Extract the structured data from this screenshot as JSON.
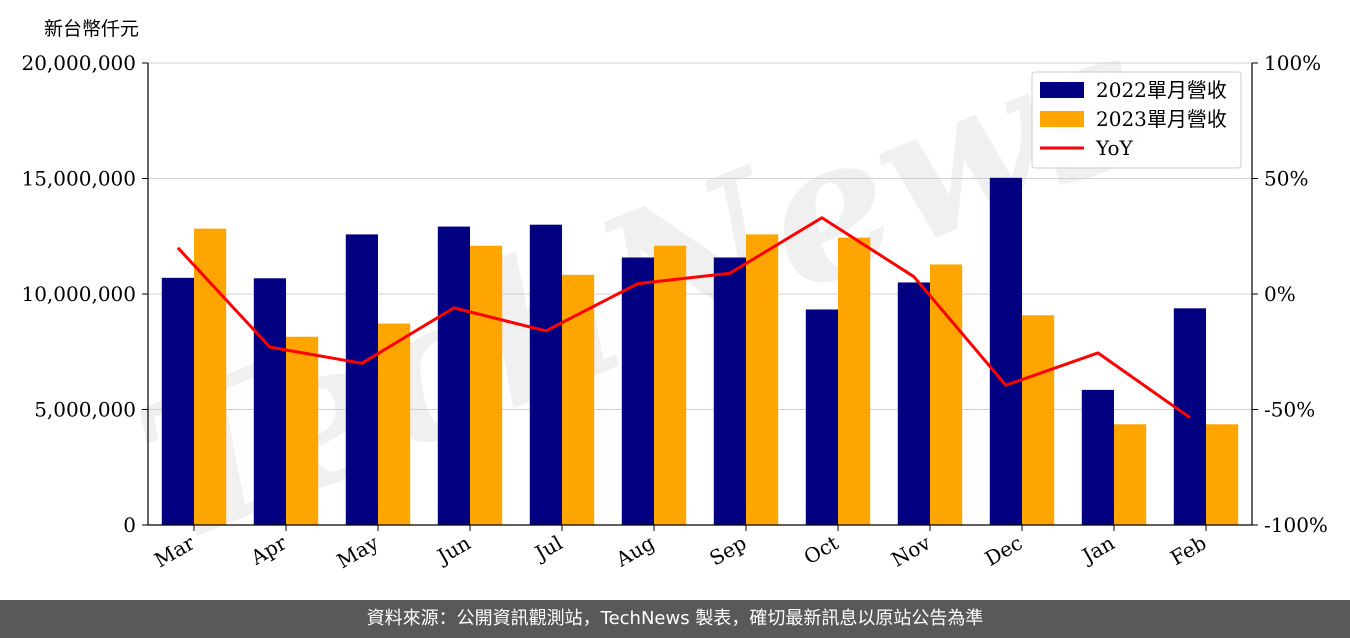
{
  "chart_data": {
    "type": "bar",
    "y_unit_label": "新台幣仟元",
    "categories": [
      "Mar",
      "Apr",
      "May",
      "Jun",
      "Jul",
      "Aug",
      "Sep",
      "Oct",
      "Nov",
      "Dec",
      "Jan",
      "Feb"
    ],
    "series": [
      {
        "name": "2022單月營收",
        "type": "bar",
        "color": "#000080",
        "values": [
          10700000,
          10680000,
          12580000,
          12920000,
          13000000,
          11580000,
          11580000,
          9330000,
          10500000,
          15030000,
          5850000,
          9380000
        ]
      },
      {
        "name": "2023單月營收",
        "type": "bar",
        "color": "#FFA500",
        "values": [
          12830000,
          8150000,
          8720000,
          12090000,
          10830000,
          12090000,
          12580000,
          12440000,
          11280000,
          9080000,
          4360000,
          4360000
        ]
      },
      {
        "name": "YoY",
        "type": "line",
        "axis": "right",
        "color": "#FF0000",
        "values": [
          20,
          -23,
          -30,
          -6,
          -16,
          4.5,
          9,
          33,
          7.5,
          -39.5,
          -25.5,
          -53.5
        ]
      }
    ],
    "ylim": [
      0,
      20000000
    ],
    "yticks": [
      "0",
      "5,000,000",
      "10,000,000",
      "15,000,000",
      "20,000,000"
    ],
    "y2lim": [
      -100,
      100
    ],
    "y2ticks": [
      "-100%",
      "-50%",
      "0%",
      "50%",
      "100%"
    ],
    "grid": "horizontal",
    "legend_position": "top-right",
    "watermark": "TechNews"
  },
  "footer_text": "資料來源：公開資訊觀測站，TechNews 製表，確切最新訊息以原站公告為準"
}
